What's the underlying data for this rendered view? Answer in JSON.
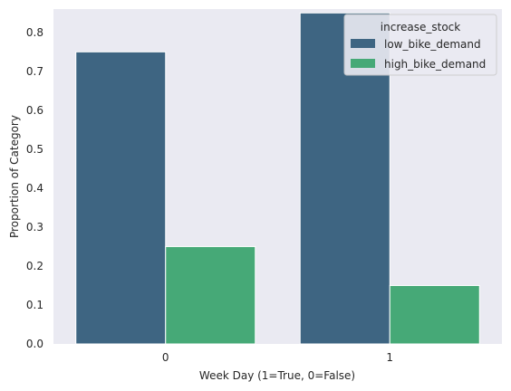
{
  "chart_data": {
    "type": "bar",
    "categories": [
      "0",
      "1"
    ],
    "series": [
      {
        "name": "low_bike_demand",
        "values": [
          0.75,
          0.85
        ],
        "color": "#3e6582"
      },
      {
        "name": "high_bike_demand",
        "values": [
          0.25,
          0.15
        ],
        "color": "#46a977"
      }
    ],
    "xlabel": "Week Day (1=True, 0=False)",
    "ylabel": "Proportion of Category",
    "ylim": [
      0,
      0.86
    ],
    "yticks": [
      0.0,
      0.1,
      0.2,
      0.3,
      0.4,
      0.5,
      0.6,
      0.7,
      0.8
    ],
    "ytick_labels": [
      "0.0",
      "0.1",
      "0.2",
      "0.3",
      "0.4",
      "0.5",
      "0.6",
      "0.7",
      "0.8"
    ],
    "grid": false,
    "legend": {
      "title": "increase_stock",
      "placement": "top-right"
    },
    "plot_background": "#eaeaf2"
  }
}
